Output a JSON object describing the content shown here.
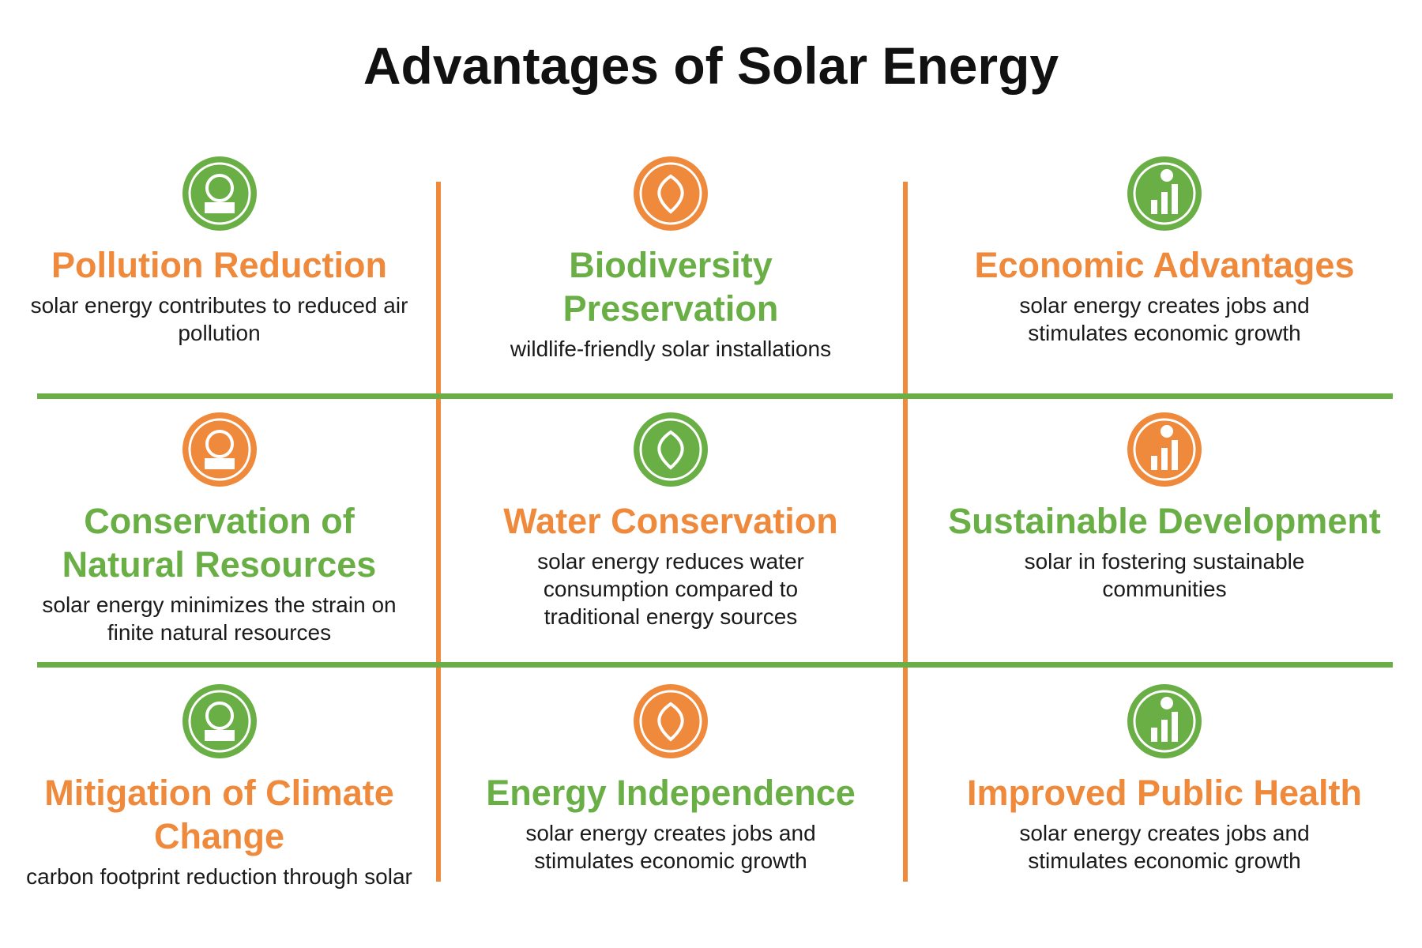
{
  "title": "Advantages of Solar Energy",
  "items": [
    {
      "heading": "Pollution Reduction",
      "text": "solar energy contributes to reduced air pollution",
      "icon_color": "#6aaf46",
      "heading_color": "#ef8a3c"
    },
    {
      "heading": "Biodiversity Preservation",
      "text": "wildlife-friendly solar installations",
      "icon_color": "#ef8a3c",
      "heading_color": "#6aaf46"
    },
    {
      "heading": "Economic Advantages",
      "text": "solar energy creates jobs and stimulates economic growth",
      "icon_color": "#6aaf46",
      "heading_color": "#ef8a3c"
    },
    {
      "heading": "Conservation of Natural Resources",
      "text": "solar energy minimizes the strain on finite natural resources",
      "icon_color": "#ef8a3c",
      "heading_color": "#6aaf46"
    },
    {
      "heading": "Water Conservation",
      "text": "solar energy reduces water consumption compared to traditional energy sources",
      "icon_color": "#6aaf46",
      "heading_color": "#ef8a3c"
    },
    {
      "heading": "Sustainable Development",
      "text": "solar in fostering sustainable communities",
      "icon_color": "#ef8a3c",
      "heading_color": "#6aaf46"
    },
    {
      "heading": "Mitigation of Climate Change",
      "text": "carbon footprint reduction through solar",
      "icon_color": "#6aaf46",
      "heading_color": "#ef8a3c"
    },
    {
      "heading": "Energy Independence",
      "text": "solar energy creates jobs and stimulates economic growth",
      "icon_color": "#ef8a3c",
      "heading_color": "#6aaf46"
    },
    {
      "heading": "Improved Public Health",
      "text": "solar energy creates jobs and stimulates economic growth",
      "icon_color": "#6aaf46",
      "heading_color": "#ef8a3c"
    }
  ]
}
